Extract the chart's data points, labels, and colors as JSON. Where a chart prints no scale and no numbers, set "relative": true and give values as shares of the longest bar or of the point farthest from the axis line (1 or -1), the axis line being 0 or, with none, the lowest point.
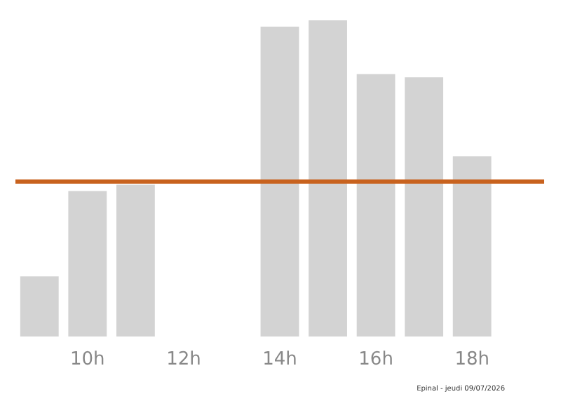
{
  "chart_data": {
    "type": "bar",
    "relative": true,
    "categories": [
      null,
      "10h",
      null,
      "12h",
      null,
      "14h",
      null,
      "16h",
      null,
      "18h",
      null
    ],
    "values": [
      0.19,
      0.46,
      0.48,
      0,
      0,
      0.98,
      1,
      0.83,
      0.82,
      0.57,
      0
    ],
    "color": "#d3d3d3",
    "ref_lines": [
      {
        "axis": "y",
        "value": 0.49,
        "label": null,
        "color": "#c8621e"
      }
    ],
    "annotations": [
      "Epinal - jeudi 09/07/2026"
    ],
    "grid": false
  }
}
